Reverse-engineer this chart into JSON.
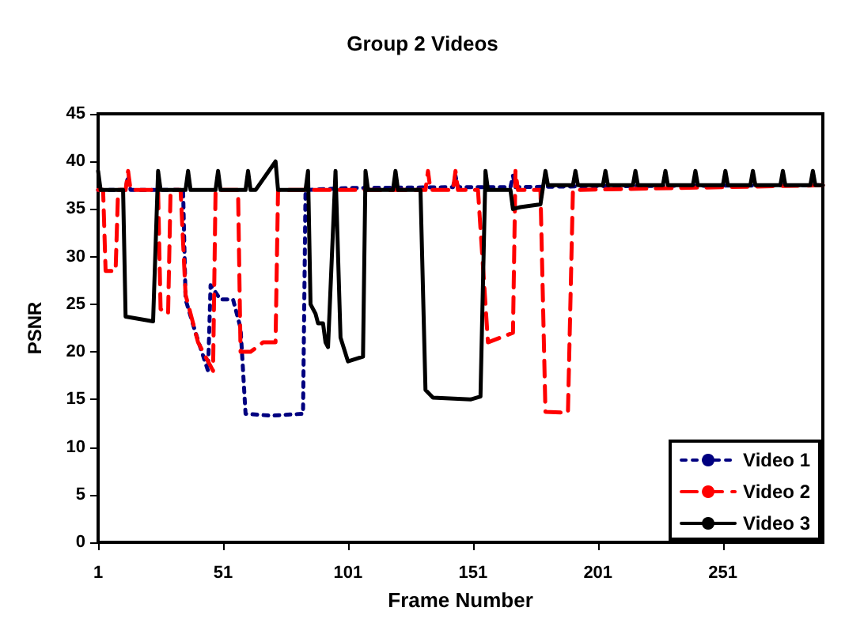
{
  "chart_data": {
    "type": "line",
    "title": "Group 2 Videos",
    "xlabel": "Frame Number",
    "ylabel": "PSNR",
    "xlim": [
      1,
      291
    ],
    "xticks": [
      1,
      51,
      101,
      151,
      201,
      251
    ],
    "ylim": [
      0,
      45
    ],
    "yticks": [
      0,
      5,
      10,
      15,
      20,
      25,
      30,
      35,
      40,
      45
    ],
    "grid": false,
    "legend": "bottom right",
    "marker": "none",
    "series": [
      {
        "name": "Video 1",
        "color": "#000080",
        "line_style": "dotted",
        "x": [
          1,
          12,
          13,
          14,
          34,
          35,
          36,
          40,
          45,
          46,
          50,
          55,
          58,
          60,
          70,
          83,
          84,
          100,
          143,
          144,
          145,
          166,
          167,
          168,
          200,
          291
        ],
        "values": [
          37,
          37,
          38.5,
          37,
          37,
          37,
          25.5,
          22,
          18,
          27,
          25.5,
          25.5,
          22.5,
          13.5,
          13.3,
          13.5,
          37,
          37.2,
          37.3,
          38.5,
          37.3,
          37.3,
          38.5,
          37.3,
          37.4,
          37.5
        ]
      },
      {
        "name": "Video 2",
        "color": "#ff0000",
        "line_style": "dashed",
        "x": [
          1,
          3,
          4,
          8,
          9,
          12,
          13,
          14,
          25,
          26,
          29,
          30,
          34,
          36,
          41,
          46,
          47,
          48,
          57,
          58,
          62,
          67,
          72,
          73,
          132,
          133,
          134,
          143,
          144,
          145,
          153,
          157,
          167,
          168,
          169,
          178,
          180,
          189,
          191,
          291
        ],
        "values": [
          37,
          37,
          28.5,
          28.5,
          37,
          37,
          39,
          37,
          37,
          24.5,
          24,
          37,
          37,
          26,
          21,
          18.5,
          18,
          37,
          37,
          20,
          20,
          21,
          21,
          37,
          37,
          39,
          37,
          37,
          39,
          37,
          37,
          21,
          22,
          39,
          37,
          37,
          13.7,
          13.6,
          37,
          37.5
        ]
      },
      {
        "name": "Video 3",
        "color": "#000000",
        "line_style": "solid",
        "x": [
          1,
          2,
          11,
          12,
          23,
          25,
          26,
          36,
          37,
          38,
          48,
          49,
          50,
          60,
          61,
          62,
          64,
          72,
          73,
          84,
          85,
          86,
          88,
          89,
          91,
          92,
          93,
          96,
          98,
          101,
          107,
          108,
          109,
          119,
          120,
          121,
          130,
          132,
          135,
          150,
          154,
          156,
          157,
          166,
          167,
          170,
          178,
          180,
          181,
          191,
          192,
          193,
          203,
          204,
          205,
          215,
          216,
          217,
          227,
          228,
          229,
          239,
          240,
          241,
          251,
          252,
          253,
          262,
          263,
          264,
          274,
          275,
          276,
          286,
          287,
          288,
          291
        ],
        "values": [
          39,
          37,
          37,
          23.7,
          23.2,
          39,
          37,
          37,
          39,
          37,
          37,
          39,
          37,
          37,
          39,
          37,
          37,
          40,
          37,
          37,
          39,
          25,
          24,
          23,
          23,
          21,
          20.5,
          39,
          21.5,
          19,
          19.5,
          39,
          37,
          37,
          39,
          37,
          37,
          16,
          15.2,
          15,
          15.3,
          39,
          37,
          37,
          35,
          35.2,
          35.5,
          39,
          37.5,
          37.5,
          39,
          37.5,
          37.5,
          39,
          37.5,
          37.5,
          39,
          37.5,
          37.5,
          39,
          37.5,
          37.5,
          39,
          37.5,
          37.5,
          39,
          37.5,
          37.5,
          39,
          37.5,
          37.5,
          39,
          37.5,
          37.5,
          39,
          37.5,
          37.5
        ]
      }
    ]
  }
}
